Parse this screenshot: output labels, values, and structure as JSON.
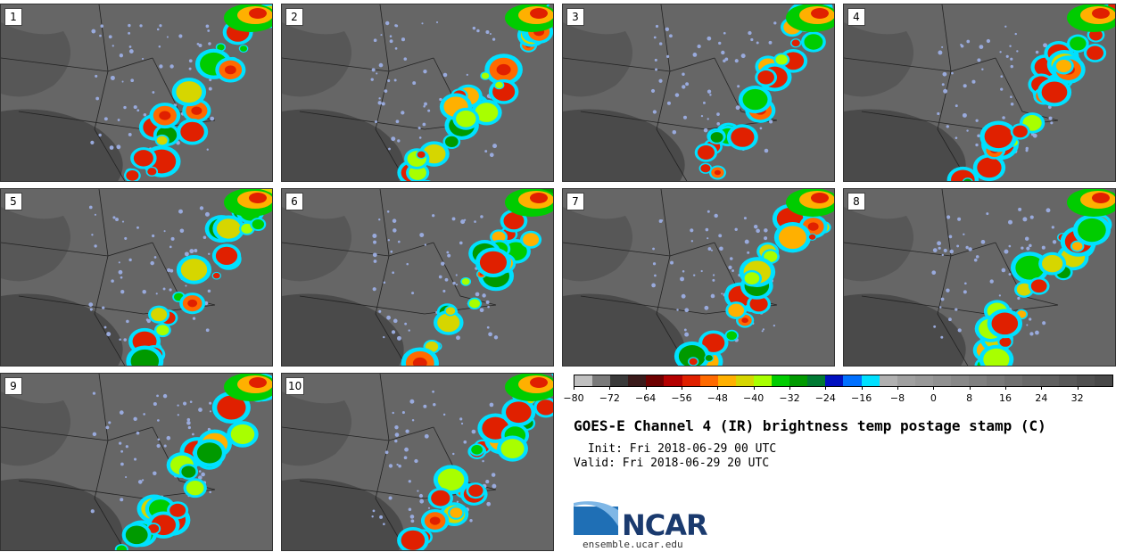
{
  "panels": [
    {
      "label": "1"
    },
    {
      "label": "2"
    },
    {
      "label": "3"
    },
    {
      "label": "4"
    },
    {
      "label": "5"
    },
    {
      "label": "6"
    },
    {
      "label": "7"
    },
    {
      "label": "8"
    },
    {
      "label": "9"
    },
    {
      "label": "10"
    }
  ],
  "colorbar": {
    "colors": [
      "#c0c0c0",
      "#7a7a7a",
      "#3a3a3a",
      "#3a1a1a",
      "#6e0000",
      "#b40000",
      "#e02000",
      "#ff6a00",
      "#ffb000",
      "#d6d600",
      "#a8ff00",
      "#00cc00",
      "#009a00",
      "#007a33",
      "#0010c0",
      "#0070ff",
      "#00e0ff",
      "#b0b0b0",
      "#a0a0a0",
      "#989898",
      "#909090",
      "#888888",
      "#808080",
      "#787878",
      "#707070",
      "#686868",
      "#606060",
      "#585858",
      "#505050",
      "#484848"
    ],
    "tick_labels": [
      "−80",
      "−72",
      "−64",
      "−56",
      "−48",
      "−40",
      "−32",
      "−24",
      "−16",
      "−8",
      "0",
      "8",
      "16",
      "24",
      "32"
    ]
  },
  "title": "GOES-E Channel 4 (IR) brightness temp postage stamp (C)",
  "init": " Init: Fri 2018-06-29 00 UTC",
  "valid": "Valid: Fri 2018-06-29 20 UTC",
  "logo": {
    "text": "NCAR",
    "colors": {
      "swoosh": "#1f6fb5",
      "text": "#1a3a6e"
    }
  },
  "site": "ensemble.ucar.edu"
}
